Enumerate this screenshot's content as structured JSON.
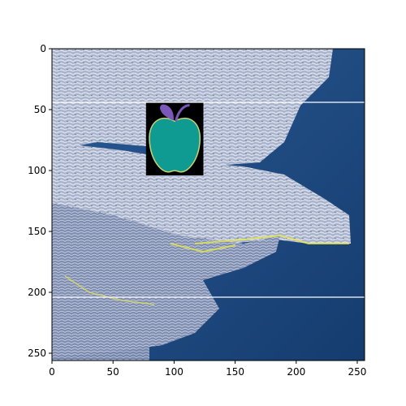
{
  "chart_data": {
    "type": "image",
    "title": "",
    "xlabel": "",
    "ylabel": "",
    "xlim": [
      0,
      256
    ],
    "ylim": [
      256,
      0
    ],
    "x_ticks": [
      0,
      50,
      100,
      150,
      200,
      250
    ],
    "y_ticks": [
      0,
      50,
      100,
      150,
      200,
      250
    ],
    "grid": false,
    "image_content": {
      "subject": "color-inverted photo of crocodiles lying on rocks by water",
      "overlay_icon": "apple-icon",
      "overlay_region": {
        "x_min": 77,
        "x_max": 124,
        "y_min": 44,
        "y_max": 104
      },
      "horizontal_lines_y": [
        44,
        204
      ]
    },
    "colors": {
      "water": "#1f4f86",
      "crocodile_light": "#c9cfdb",
      "crocodile_mid": "#8f9bb8",
      "highlight": "#e8e84a",
      "apple_body": "#0f9a92",
      "apple_outline": "#c9d36a",
      "apple_leaf": "#7b57b7",
      "apple_background": "#000000",
      "hline": "#ffffff"
    }
  }
}
